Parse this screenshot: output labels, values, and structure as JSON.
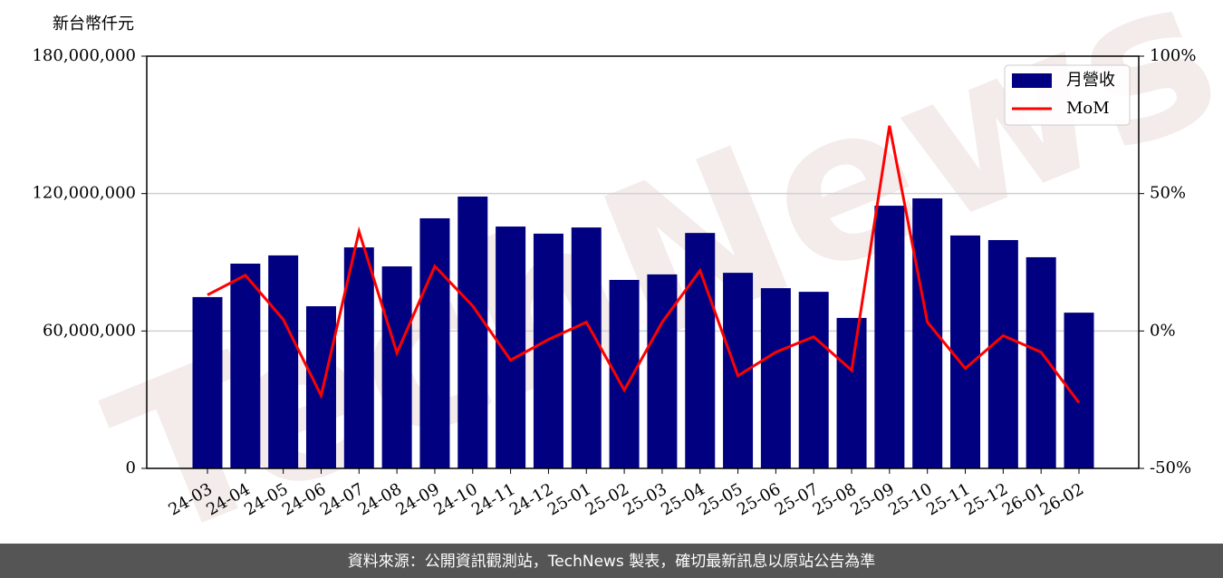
{
  "chart_data": {
    "type": "bar",
    "y_axis_label": "新台幣仟元",
    "watermark": "TechNews",
    "source": "資料來源：公開資訊觀測站，TechNews 製表，確切最新訊息以原站公告為準",
    "categories": [
      "24-03",
      "24-04",
      "24-05",
      "24-06",
      "24-07",
      "24-08",
      "24-09",
      "24-10",
      "24-11",
      "24-12",
      "25-01",
      "25-02",
      "25-03",
      "25-04",
      "25-05",
      "25-06",
      "25-07",
      "25-08",
      "25-09",
      "25-10",
      "25-11",
      "25-12",
      "26-01",
      "26-02"
    ],
    "series": [
      {
        "name": "月營收",
        "type": "bar",
        "color": "#000080",
        "values": [
          74800000,
          89400000,
          93000000,
          70800000,
          96500000,
          88200000,
          109200000,
          118700000,
          105600000,
          102500000,
          105200000,
          82300000,
          84700000,
          102800000,
          85400000,
          78700000,
          77100000,
          65700000,
          114700000,
          117900000,
          101700000,
          99700000,
          92200000,
          68000000
        ]
      },
      {
        "name": "MoM",
        "type": "line",
        "color": "#ff0000",
        "axis": "y2",
        "values": [
          13.1,
          20.3,
          4.2,
          -23.5,
          36.2,
          -8.0,
          23.6,
          9.1,
          -10.6,
          -3.1,
          3.2,
          -21.5,
          3.2,
          22.0,
          -16.3,
          -7.7,
          -2.1,
          -14.3,
          74.7,
          3.2,
          -13.6,
          -1.7,
          -7.7,
          -26.1
        ]
      }
    ],
    "ylim": [
      0,
      180000000
    ],
    "yticks": [
      0,
      {
        "value": 60000000,
        "label": "60,000,000"
      },
      {
        "value": 120000000,
        "label": "120,000,000"
      },
      {
        "value": 180000000,
        "label": "180,000,000"
      }
    ],
    "y2lim": [
      -50,
      100
    ],
    "y2ticks": [
      {
        "value": -50,
        "label": "-50%"
      },
      {
        "value": 0,
        "label": "0%"
      },
      {
        "value": 50,
        "label": "50%"
      },
      {
        "value": 100,
        "label": "100%"
      }
    ],
    "grid": true,
    "legend": "upper right"
  }
}
